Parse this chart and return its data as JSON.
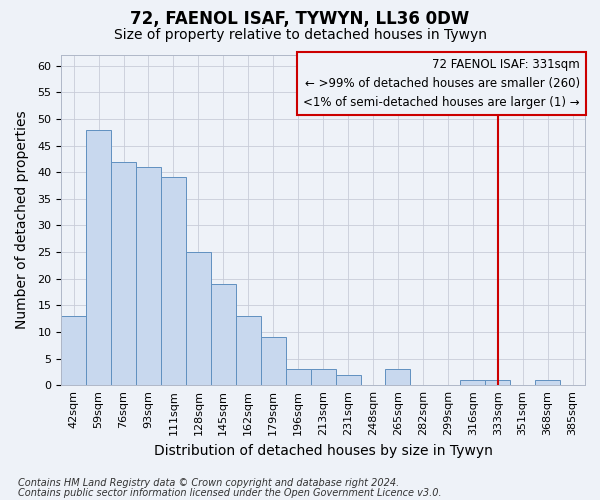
{
  "title": "72, FAENOL ISAF, TYWYN, LL36 0DW",
  "subtitle": "Size of property relative to detached houses in Tywyn",
  "xlabel": "Distribution of detached houses by size in Tywyn",
  "ylabel": "Number of detached properties",
  "categories": [
    "42sqm",
    "59sqm",
    "76sqm",
    "93sqm",
    "111sqm",
    "128sqm",
    "145sqm",
    "162sqm",
    "179sqm",
    "196sqm",
    "213sqm",
    "231sqm",
    "248sqm",
    "265sqm",
    "282sqm",
    "299sqm",
    "316sqm",
    "333sqm",
    "351sqm",
    "368sqm",
    "385sqm"
  ],
  "values": [
    13,
    48,
    42,
    41,
    39,
    25,
    19,
    13,
    9,
    3,
    3,
    2,
    0,
    3,
    0,
    0,
    1,
    1,
    0,
    1,
    0
  ],
  "bar_color": "#c8d8ee",
  "bar_edge_color": "#6090c0",
  "vline_x_index": 17,
  "vline_color": "#cc0000",
  "legend_text_line1": "72 FAENOL ISAF: 331sqm",
  "legend_text_line2": "← >99% of detached houses are smaller (260)",
  "legend_text_line3": "<1% of semi-detached houses are larger (1) →",
  "ylim": [
    0,
    62
  ],
  "yticks": [
    0,
    5,
    10,
    15,
    20,
    25,
    30,
    35,
    40,
    45,
    50,
    55,
    60
  ],
  "footnote1": "Contains HM Land Registry data © Crown copyright and database right 2024.",
  "footnote2": "Contains public sector information licensed under the Open Government Licence v3.0.",
  "bg_color": "#eef2f8",
  "grid_color": "#c8ccd8",
  "title_fontsize": 12,
  "subtitle_fontsize": 10,
  "axis_label_fontsize": 10,
  "tick_fontsize": 8,
  "legend_fontsize": 8.5,
  "footnote_fontsize": 7
}
